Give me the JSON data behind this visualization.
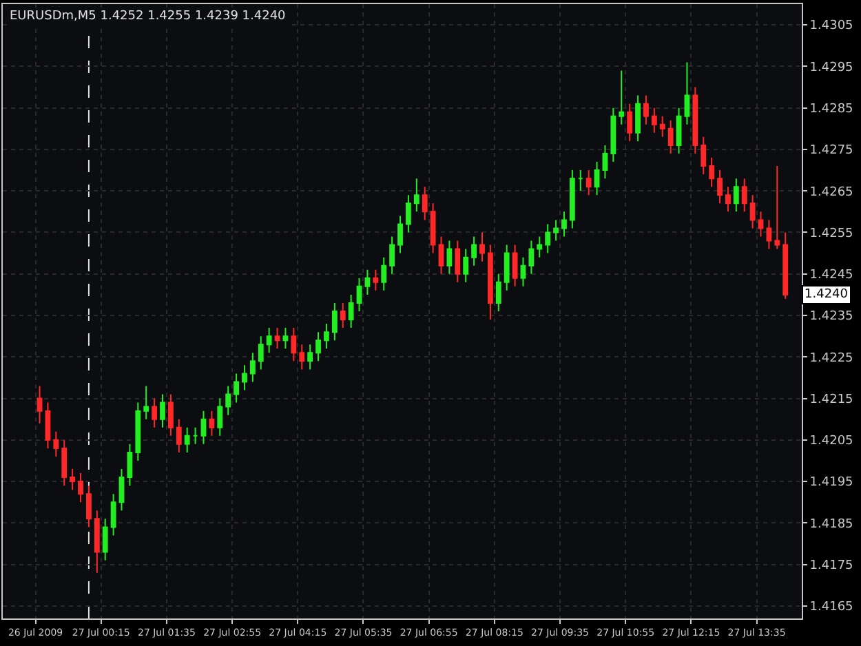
{
  "chart_data": {
    "type": "candlestick",
    "title": "EURUSDm,M5 1.4252 1.4255 1.4239 1.4240",
    "x": [
      "2009-07-26T23:00",
      "2009-07-26T23:10",
      "2009-07-26T23:20",
      "2009-07-26T23:30",
      "2009-07-26T23:40",
      "2009-07-26T23:50",
      "2009-07-27T00:00",
      "2009-07-27T00:10",
      "2009-07-27T00:20",
      "2009-07-27T00:30",
      "2009-07-27T00:40",
      "2009-07-27T00:50",
      "2009-07-27T01:00",
      "2009-07-27T01:10",
      "2009-07-27T01:20",
      "2009-07-27T01:30",
      "2009-07-27T01:40",
      "2009-07-27T01:50",
      "2009-07-27T02:00",
      "2009-07-27T02:10",
      "2009-07-27T02:20",
      "2009-07-27T02:30",
      "2009-07-27T02:40",
      "2009-07-27T02:50",
      "2009-07-27T03:00",
      "2009-07-27T03:10",
      "2009-07-27T03:20",
      "2009-07-27T03:30",
      "2009-07-27T03:40",
      "2009-07-27T03:50",
      "2009-07-27T04:00",
      "2009-07-27T04:10",
      "2009-07-27T04:20",
      "2009-07-27T04:30",
      "2009-07-27T04:40",
      "2009-07-27T04:50",
      "2009-07-27T05:00",
      "2009-07-27T05:10",
      "2009-07-27T05:20",
      "2009-07-27T05:30",
      "2009-07-27T05:40",
      "2009-07-27T05:50",
      "2009-07-27T06:00",
      "2009-07-27T06:10",
      "2009-07-27T06:20",
      "2009-07-27T06:30",
      "2009-07-27T06:40",
      "2009-07-27T06:50",
      "2009-07-27T07:00",
      "2009-07-27T07:10",
      "2009-07-27T07:20",
      "2009-07-27T07:30",
      "2009-07-27T07:40",
      "2009-07-27T07:50",
      "2009-07-27T08:00",
      "2009-07-27T08:10",
      "2009-07-27T08:20",
      "2009-07-27T08:30",
      "2009-07-27T08:40",
      "2009-07-27T08:50",
      "2009-07-27T09:00",
      "2009-07-27T09:10",
      "2009-07-27T09:20",
      "2009-07-27T09:30",
      "2009-07-27T09:40",
      "2009-07-27T09:50",
      "2009-07-27T10:00",
      "2009-07-27T10:10",
      "2009-07-27T10:20",
      "2009-07-27T10:30",
      "2009-07-27T10:40",
      "2009-07-27T10:50",
      "2009-07-27T11:00",
      "2009-07-27T11:10",
      "2009-07-27T11:20",
      "2009-07-27T11:30",
      "2009-07-27T11:40",
      "2009-07-27T11:50",
      "2009-07-27T12:00",
      "2009-07-27T12:10",
      "2009-07-27T12:20",
      "2009-07-27T12:30",
      "2009-07-27T12:40",
      "2009-07-27T12:50",
      "2009-07-27T13:00",
      "2009-07-27T13:10",
      "2009-07-27T13:20",
      "2009-07-27T13:30",
      "2009-07-27T13:40",
      "2009-07-27T13:50",
      "2009-07-27T14:00",
      "2009-07-27T14:10"
    ],
    "ohlc": [
      [
        1.4215,
        1.4218,
        1.4209,
        1.4212
      ],
      [
        1.4212,
        1.4214,
        1.4203,
        1.4205
      ],
      [
        1.4205,
        1.4207,
        1.4201,
        1.4203
      ],
      [
        1.4203,
        1.4205,
        1.4194,
        1.4196
      ],
      [
        1.4196,
        1.4198,
        1.4193,
        1.4195
      ],
      [
        1.4195,
        1.4197,
        1.419,
        1.4192
      ],
      [
        1.4192,
        1.4194,
        1.4184,
        1.4186
      ],
      [
        1.4186,
        1.4188,
        1.4173,
        1.4178
      ],
      [
        1.4178,
        1.4186,
        1.4176,
        1.4184
      ],
      [
        1.4184,
        1.4192,
        1.4182,
        1.419
      ],
      [
        1.419,
        1.4198,
        1.4188,
        1.4196
      ],
      [
        1.4196,
        1.4204,
        1.4194,
        1.4202
      ],
      [
        1.4202,
        1.4214,
        1.42,
        1.4212
      ],
      [
        1.4212,
        1.4218,
        1.421,
        1.4213
      ],
      [
        1.4213,
        1.4215,
        1.4208,
        1.421
      ],
      [
        1.421,
        1.4216,
        1.4208,
        1.4214
      ],
      [
        1.4214,
        1.4216,
        1.4206,
        1.4208
      ],
      [
        1.4208,
        1.421,
        1.4202,
        1.4204
      ],
      [
        1.4204,
        1.4208,
        1.4202,
        1.4206
      ],
      [
        1.4206,
        1.4208,
        1.4204,
        1.4206
      ],
      [
        1.4206,
        1.4212,
        1.4204,
        1.421
      ],
      [
        1.421,
        1.4212,
        1.4206,
        1.4208
      ],
      [
        1.4208,
        1.4215,
        1.4206,
        1.4213
      ],
      [
        1.4213,
        1.4218,
        1.4211,
        1.4216
      ],
      [
        1.4216,
        1.4221,
        1.4214,
        1.4219
      ],
      [
        1.4219,
        1.4223,
        1.4217,
        1.4221
      ],
      [
        1.4221,
        1.4226,
        1.4219,
        1.4224
      ],
      [
        1.4224,
        1.423,
        1.4222,
        1.4228
      ],
      [
        1.4228,
        1.4232,
        1.4226,
        1.423
      ],
      [
        1.423,
        1.4232,
        1.4227,
        1.4229
      ],
      [
        1.4229,
        1.4232,
        1.4227,
        1.423
      ],
      [
        1.423,
        1.4232,
        1.4224,
        1.4226
      ],
      [
        1.4226,
        1.4228,
        1.4222,
        1.4224
      ],
      [
        1.4224,
        1.4228,
        1.4222,
        1.4226
      ],
      [
        1.4226,
        1.4231,
        1.4224,
        1.4229
      ],
      [
        1.4229,
        1.4233,
        1.4227,
        1.4231
      ],
      [
        1.4231,
        1.4238,
        1.4229,
        1.4236
      ],
      [
        1.4236,
        1.4238,
        1.4232,
        1.4234
      ],
      [
        1.4234,
        1.424,
        1.4232,
        1.4238
      ],
      [
        1.4238,
        1.4244,
        1.4236,
        1.4242
      ],
      [
        1.4242,
        1.4246,
        1.424,
        1.4244
      ],
      [
        1.4244,
        1.4246,
        1.4241,
        1.4243
      ],
      [
        1.4243,
        1.4249,
        1.4241,
        1.4247
      ],
      [
        1.4247,
        1.4254,
        1.4245,
        1.4252
      ],
      [
        1.4252,
        1.4259,
        1.425,
        1.4257
      ],
      [
        1.4257,
        1.4264,
        1.4255,
        1.4262
      ],
      [
        1.4262,
        1.4268,
        1.426,
        1.4264
      ],
      [
        1.4264,
        1.4266,
        1.4258,
        1.426
      ],
      [
        1.426,
        1.4262,
        1.425,
        1.4252
      ],
      [
        1.4252,
        1.4254,
        1.4245,
        1.4247
      ],
      [
        1.4247,
        1.4253,
        1.4245,
        1.4251
      ],
      [
        1.4251,
        1.4253,
        1.4243,
        1.4245
      ],
      [
        1.4245,
        1.4251,
        1.4243,
        1.4249
      ],
      [
        1.4249,
        1.4254,
        1.4247,
        1.4252
      ],
      [
        1.4252,
        1.4255,
        1.4248,
        1.425
      ],
      [
        1.425,
        1.4252,
        1.4234,
        1.4238
      ],
      [
        1.4238,
        1.4245,
        1.4236,
        1.4243
      ],
      [
        1.4243,
        1.4252,
        1.4241,
        1.425
      ],
      [
        1.425,
        1.4252,
        1.4242,
        1.4244
      ],
      [
        1.4244,
        1.4249,
        1.4242,
        1.4247
      ],
      [
        1.4247,
        1.4253,
        1.4245,
        1.4251
      ],
      [
        1.4251,
        1.4254,
        1.4249,
        1.4252
      ],
      [
        1.4252,
        1.4257,
        1.425,
        1.4255
      ],
      [
        1.4255,
        1.4258,
        1.4253,
        1.4256
      ],
      [
        1.4256,
        1.426,
        1.4254,
        1.4258
      ],
      [
        1.4258,
        1.427,
        1.4256,
        1.4268
      ],
      [
        1.4268,
        1.427,
        1.4265,
        1.4268
      ],
      [
        1.4268,
        1.427,
        1.4264,
        1.4266
      ],
      [
        1.4266,
        1.4272,
        1.4264,
        1.427
      ],
      [
        1.427,
        1.4276,
        1.4268,
        1.4274
      ],
      [
        1.4274,
        1.4285,
        1.4272,
        1.4283
      ],
      [
        1.4283,
        1.4294,
        1.4281,
        1.4284
      ],
      [
        1.4284,
        1.4286,
        1.4277,
        1.4279
      ],
      [
        1.4279,
        1.4288,
        1.4277,
        1.4286
      ],
      [
        1.4286,
        1.4288,
        1.4281,
        1.4283
      ],
      [
        1.4283,
        1.4285,
        1.4279,
        1.4281
      ],
      [
        1.4281,
        1.4283,
        1.4278,
        1.428
      ],
      [
        1.428,
        1.4282,
        1.4274,
        1.4276
      ],
      [
        1.4276,
        1.4285,
        1.4274,
        1.4283
      ],
      [
        1.4283,
        1.4296,
        1.4281,
        1.4288
      ],
      [
        1.4288,
        1.429,
        1.4274,
        1.4276
      ],
      [
        1.4276,
        1.4278,
        1.4269,
        1.4271
      ],
      [
        1.4271,
        1.4273,
        1.4266,
        1.4268
      ],
      [
        1.4268,
        1.427,
        1.4262,
        1.4264
      ],
      [
        1.4264,
        1.4266,
        1.426,
        1.4262
      ],
      [
        1.4262,
        1.4268,
        1.426,
        1.4266
      ],
      [
        1.4266,
        1.4268,
        1.426,
        1.4262
      ],
      [
        1.4262,
        1.4264,
        1.4256,
        1.4258
      ],
      [
        1.4258,
        1.426,
        1.4254,
        1.4256
      ],
      [
        1.4256,
        1.4258,
        1.4251,
        1.4253
      ],
      [
        1.4253,
        1.4271,
        1.4251,
        1.4252
      ],
      [
        1.4252,
        1.4255,
        1.4239,
        1.424
      ]
    ],
    "colors": [
      "#ff2828",
      "#ff2828",
      "#ff2828",
      "#ff2828",
      "#ff2828",
      "#ff2828",
      "#ff2828",
      "#ff2828",
      "#22ee22",
      "#22ee22",
      "#22ee22",
      "#22ee22",
      "#22ee22",
      "#22ee22",
      "#ff2828",
      "#22ee22",
      "#ff2828",
      "#ff2828",
      "#22ee22",
      "#22ee22",
      "#22ee22",
      "#ff2828",
      "#22ee22",
      "#22ee22",
      "#22ee22",
      "#22ee22",
      "#22ee22",
      "#22ee22",
      "#22ee22",
      "#ff2828",
      "#22ee22",
      "#ff2828",
      "#ff2828",
      "#22ee22",
      "#22ee22",
      "#22ee22",
      "#22ee22",
      "#ff2828",
      "#22ee22",
      "#22ee22",
      "#22ee22",
      "#ff2828",
      "#22ee22",
      "#22ee22",
      "#22ee22",
      "#22ee22",
      "#22ee22",
      "#ff2828",
      "#ff2828",
      "#ff2828",
      "#22ee22",
      "#ff2828",
      "#22ee22",
      "#22ee22",
      "#ff2828",
      "#ff2828",
      "#22ee22",
      "#22ee22",
      "#ff2828",
      "#22ee22",
      "#22ee22",
      "#22ee22",
      "#22ee22",
      "#22ee22",
      "#22ee22",
      "#22ee22",
      "#22ee22",
      "#ff2828",
      "#22ee22",
      "#22ee22",
      "#22ee22",
      "#22ee22",
      "#ff2828",
      "#22ee22",
      "#ff2828",
      "#ff2828",
      "#ff2828",
      "#ff2828",
      "#22ee22",
      "#22ee22",
      "#ff2828",
      "#ff2828",
      "#ff2828",
      "#ff2828",
      "#ff2828",
      "#22ee22",
      "#ff2828",
      "#ff2828",
      "#ff2828",
      "#ff2828",
      "#ff2828",
      "#ff2828"
    ],
    "xlim": [
      "2009-07-26T22:15",
      "2009-07-27T14:30"
    ],
    "xticks": [
      {
        "value": "2009-07-26T22:55",
        "label": "26 Jul 2009"
      },
      {
        "value": "2009-07-27T00:15",
        "label": "27 Jul 00:15"
      },
      {
        "value": "2009-07-27T01:35",
        "label": "27 Jul 01:35"
      },
      {
        "value": "2009-07-27T02:55",
        "label": "27 Jul 02:55"
      },
      {
        "value": "2009-07-27T04:15",
        "label": "27 Jul 04:15"
      },
      {
        "value": "2009-07-27T05:35",
        "label": "27 Jul 05:35"
      },
      {
        "value": "2009-07-27T06:55",
        "label": "27 Jul 06:55"
      },
      {
        "value": "2009-07-27T08:15",
        "label": "27 Jul 08:15"
      },
      {
        "value": "2009-07-27T09:35",
        "label": "27 Jul 09:35"
      },
      {
        "value": "2009-07-27T10:55",
        "label": "27 Jul 10:55"
      },
      {
        "value": "2009-07-27T12:15",
        "label": "27 Jul 12:15"
      },
      {
        "value": "2009-07-27T13:35",
        "label": "27 Jul 13:35"
      }
    ],
    "ylim": [
      1.4162,
      1.431
    ],
    "yticks": [
      1.4165,
      1.4175,
      1.4185,
      1.4195,
      1.4205,
      1.4215,
      1.4225,
      1.4235,
      1.4245,
      1.4255,
      1.4265,
      1.4275,
      1.4285,
      1.4295,
      1.4305
    ],
    "grid": true,
    "ref_lines": [
      {
        "axis": "x",
        "value": "2009-07-27T00:00",
        "label": null,
        "color": "#dddddd",
        "line_style": "dashed"
      }
    ],
    "annotations": [
      {
        "text": "1.4240",
        "y": 1.424
      }
    ]
  }
}
